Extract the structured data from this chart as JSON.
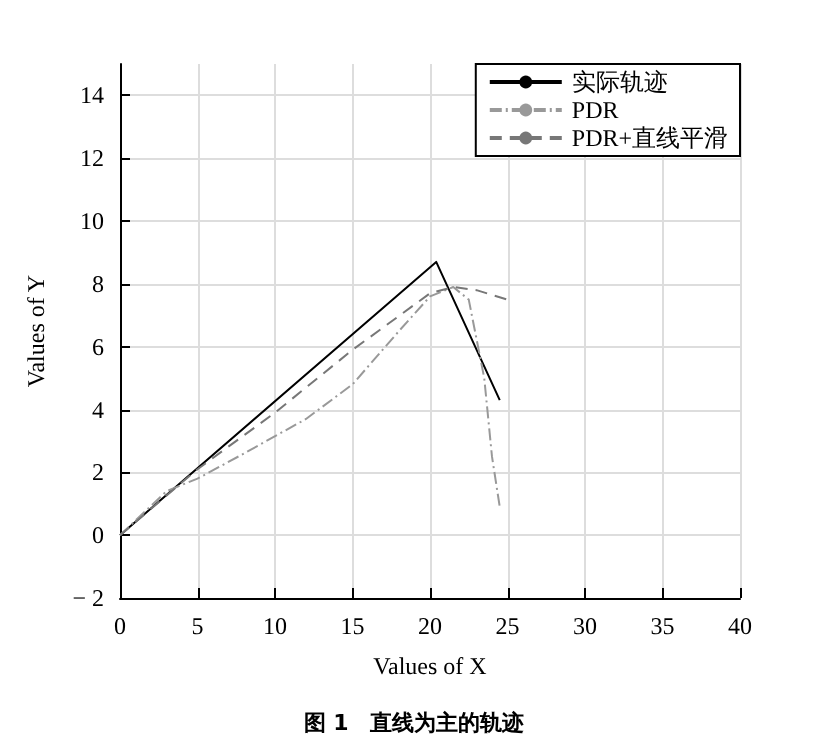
{
  "chart_data": {
    "type": "line",
    "title": "图 1　直线为主的轨迹",
    "xlabel": "Values of X",
    "ylabel": "Values of Y",
    "xlim": [
      0,
      40
    ],
    "xticks": [
      0,
      5,
      10,
      15,
      20,
      25,
      30,
      35,
      40
    ],
    "ylim": [
      -2,
      15
    ],
    "yticks": [
      -2,
      0,
      2,
      4,
      6,
      8,
      10,
      12,
      14
    ],
    "grid": true,
    "legend": "top right",
    "marker": "none",
    "series": [
      {
        "name": "实际轨迹",
        "color": "#000000",
        "line_style": "solid",
        "x": [
          0,
          20.4,
          24.5
        ],
        "values": [
          0,
          8.7,
          4.3
        ]
      },
      {
        "name": "PDR",
        "color": "#999999",
        "line_style": "dashdot",
        "x": [
          0,
          3,
          5,
          8,
          12,
          15,
          18,
          20,
          21.5,
          22.5,
          23.5,
          24,
          24.5
        ],
        "values": [
          0,
          1.4,
          1.8,
          2.6,
          3.7,
          4.8,
          6.5,
          7.6,
          7.9,
          7.5,
          5,
          2.5,
          0.9
        ]
      },
      {
        "name": "PDR+直线平滑",
        "color": "#777777",
        "line_style": "dashed",
        "x": [
          0,
          5,
          10,
          15,
          20,
          21.5,
          23,
          25
        ],
        "values": [
          0,
          2.1,
          3.9,
          5.9,
          7.7,
          7.9,
          7.8,
          7.5
        ]
      }
    ]
  }
}
